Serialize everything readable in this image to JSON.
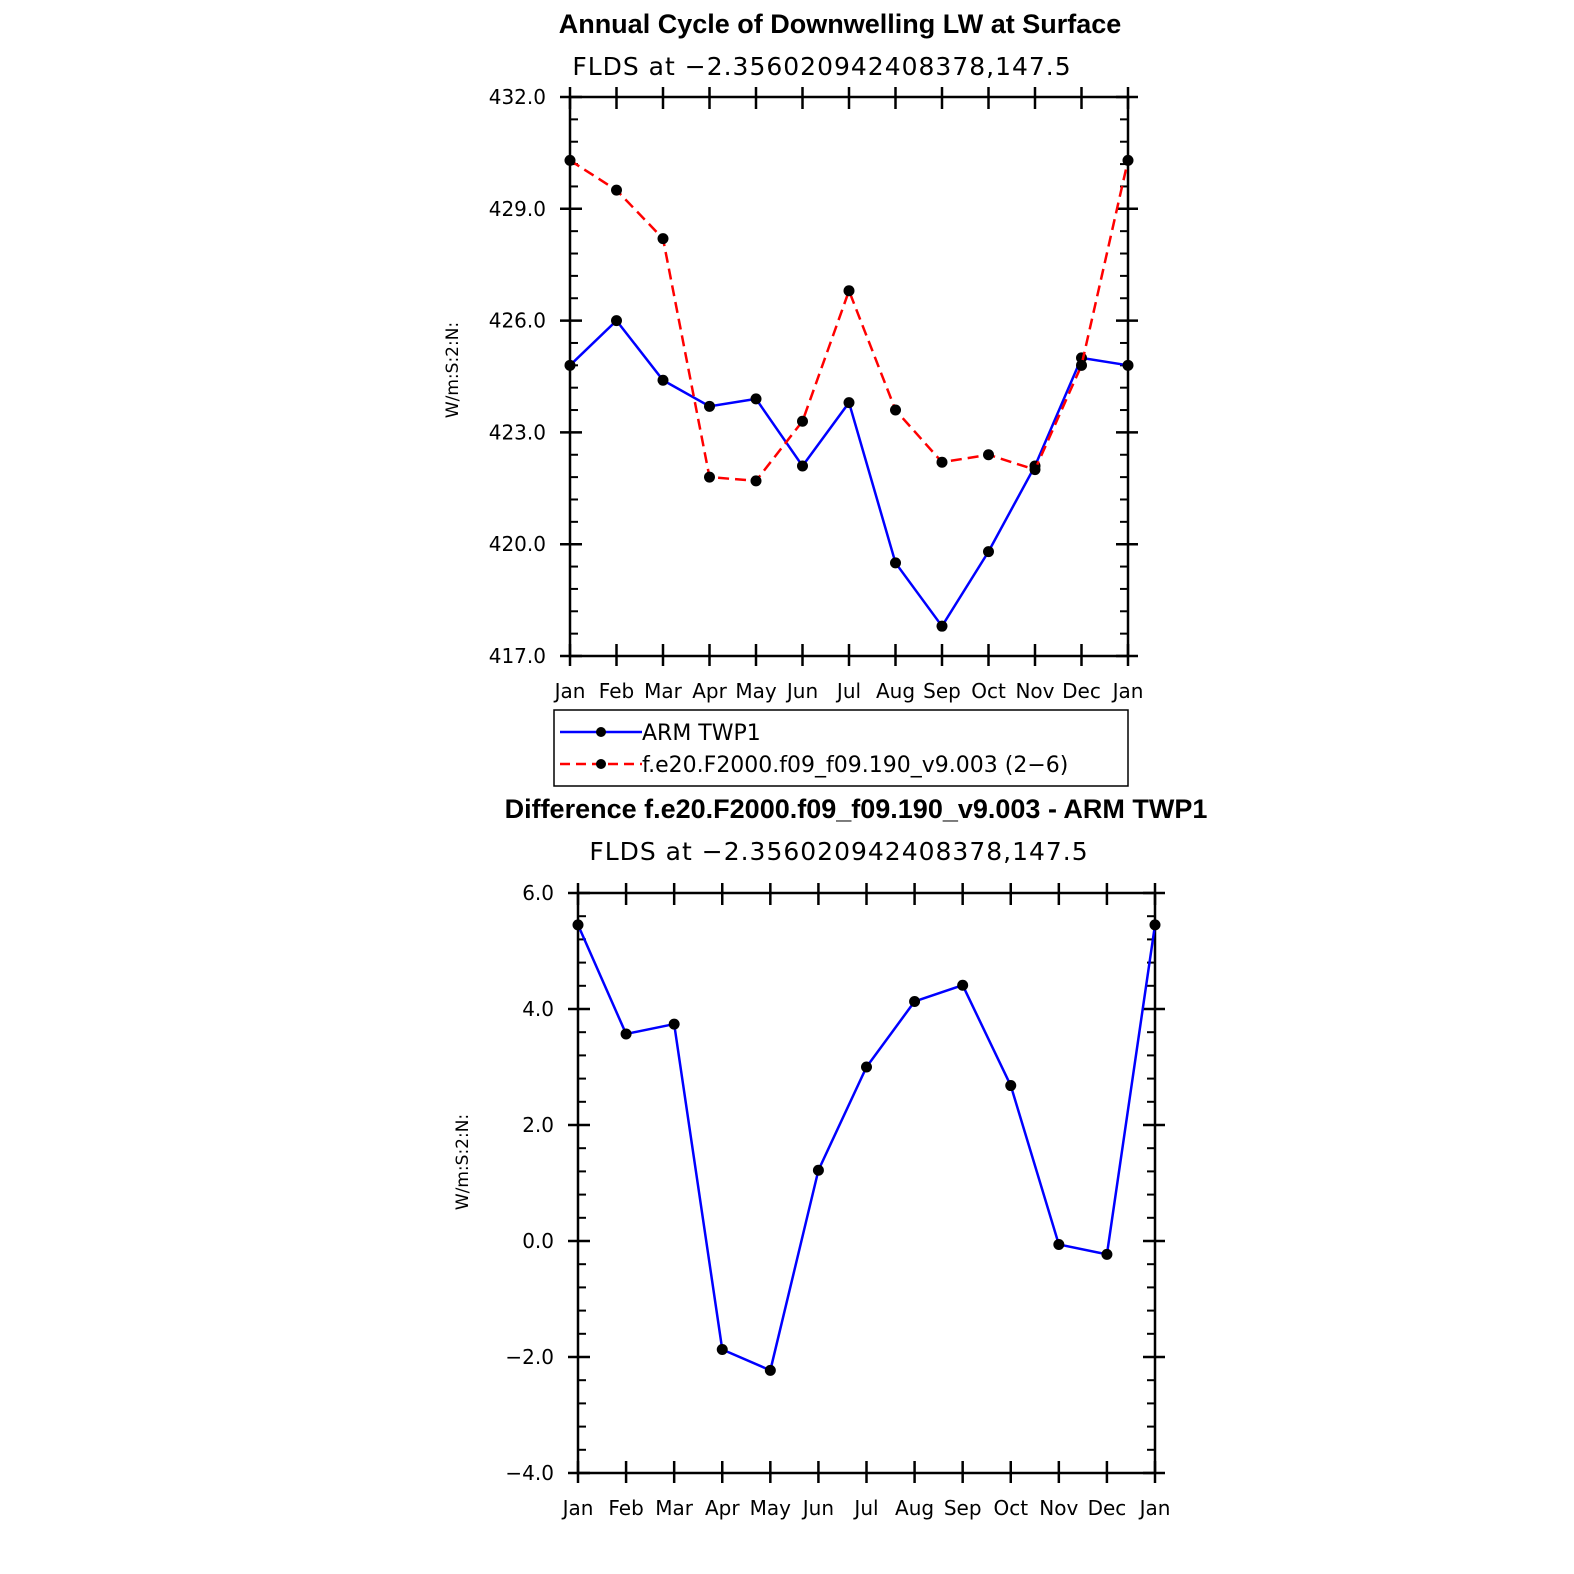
{
  "chart_data": [
    {
      "type": "line",
      "title": "Annual Cycle of Downwelling LW at Surface",
      "subtitle": "FLDS at −2.356020942408378,147.5",
      "ylabel": "W/m:S:2:N:",
      "xlabel": "",
      "categories": [
        "Jan",
        "Feb",
        "Mar",
        "Apr",
        "May",
        "Jun",
        "Jul",
        "Aug",
        "Sep",
        "Oct",
        "Nov",
        "Dec",
        "Jan"
      ],
      "ylim": [
        417.0,
        432.0
      ],
      "yticks": [
        "417.0",
        "420.0",
        "423.0",
        "426.0",
        "429.0",
        "432.0"
      ],
      "grid": false,
      "legend_position": "bottom",
      "series": [
        {
          "name": "ARM TWP1",
          "color": "#0000ff",
          "dash": "solid",
          "values": [
            424.8,
            426.0,
            424.4,
            423.7,
            423.9,
            422.1,
            423.8,
            419.5,
            417.8,
            419.8,
            422.1,
            425.0,
            424.8
          ]
        },
        {
          "name": "f.e20.F2000.f09_f09.190_v9.003 (2−6)",
          "color": "#ff0000",
          "dash": "dashed",
          "values": [
            430.3,
            429.5,
            428.2,
            421.8,
            421.7,
            423.3,
            426.8,
            423.6,
            422.2,
            422.4,
            422.0,
            424.8,
            430.3
          ]
        }
      ]
    },
    {
      "type": "line",
      "title": "Difference f.e20.F2000.f09_f09.190_v9.003 - ARM TWP1",
      "subtitle": "FLDS at −2.356020942408378,147.5",
      "ylabel": "W/m:S:2:N:",
      "xlabel": "",
      "categories": [
        "Jan",
        "Feb",
        "Mar",
        "Apr",
        "May",
        "Jun",
        "Jul",
        "Aug",
        "Sep",
        "Oct",
        "Nov",
        "Dec",
        "Jan"
      ],
      "ylim": [
        -4.0,
        6.0
      ],
      "yticks": [
        "−4.0",
        "−2.0",
        "0.0",
        "2.0",
        "4.0",
        "6.0"
      ],
      "grid": false,
      "series": [
        {
          "color": "#0000ff",
          "dash": "solid",
          "values": [
            5.45,
            3.57,
            3.74,
            -1.87,
            -2.23,
            1.22,
            3.0,
            4.13,
            4.41,
            2.68,
            -0.06,
            -0.23,
            5.45
          ]
        }
      ]
    }
  ]
}
